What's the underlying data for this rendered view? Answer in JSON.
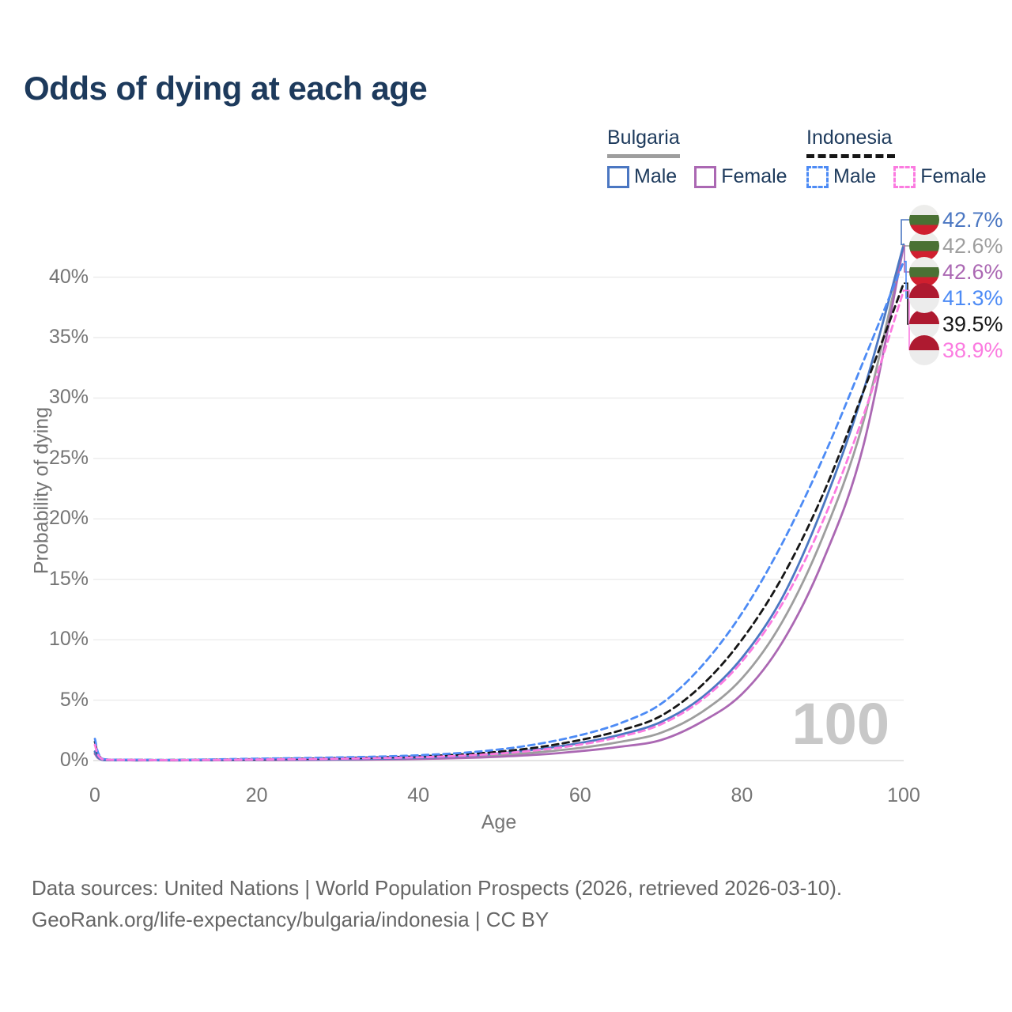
{
  "title": "Odds of dying at each age",
  "legend": {
    "groups": [
      {
        "name": "Bulgaria",
        "style": "solid",
        "underline_series": "bulgaria_total",
        "items": [
          {
            "label": "Male",
            "series": "bulgaria_male"
          },
          {
            "label": "Female",
            "series": "bulgaria_female"
          }
        ]
      },
      {
        "name": "Indonesia",
        "style": "dashed",
        "underline_series": "indonesia_total",
        "items": [
          {
            "label": "Male",
            "series": "indonesia_male"
          },
          {
            "label": "Female",
            "series": "indonesia_female"
          }
        ]
      }
    ]
  },
  "watermark": "100",
  "footer": {
    "line1": "Data sources: United Nations | World Population Prospects (2026, retrieved 2026-03-10).",
    "line2": "GeoRank.org/life-expectancy/bulgaria/indonesia | CC BY"
  },
  "chart_data": {
    "type": "line",
    "title": "Odds of dying at each age",
    "xlabel": "Age",
    "ylabel": "Probability of dying",
    "xlim": [
      0,
      100
    ],
    "ylim_pct": [
      0,
      43
    ],
    "grid": "horizontal",
    "yticks_pct": [
      0,
      5,
      10,
      15,
      20,
      25,
      30,
      35,
      40
    ],
    "ytick_labels": [
      "0%",
      "5%",
      "10%",
      "15%",
      "20%",
      "25%",
      "30%",
      "35%",
      "40%"
    ],
    "xticks": [
      0,
      20,
      40,
      60,
      80,
      100
    ],
    "ages": [
      0,
      1,
      5,
      10,
      15,
      20,
      25,
      30,
      35,
      40,
      45,
      50,
      55,
      60,
      65,
      70,
      75,
      80,
      85,
      90,
      95,
      100
    ],
    "series": [
      {
        "key": "bulgaria_total",
        "name": "Bulgaria (both sexes)",
        "country": "Bulgaria",
        "flag": "bulgaria",
        "dash": false,
        "color": "#9e9e9e",
        "end_label": "42.6%",
        "label_slot": 1,
        "values_pct": [
          0.65,
          0.05,
          0.02,
          0.02,
          0.04,
          0.06,
          0.08,
          0.1,
          0.13,
          0.18,
          0.28,
          0.45,
          0.7,
          1.05,
          1.55,
          2.3,
          4.0,
          6.8,
          11.5,
          18.5,
          28.0,
          42.6
        ]
      },
      {
        "key": "bulgaria_female",
        "name": "Bulgaria Female",
        "country": "Bulgaria",
        "flag": "bulgaria",
        "dash": false,
        "color": "#ab68b3",
        "end_label": "42.6%",
        "label_slot": 2,
        "values_pct": [
          0.55,
          0.05,
          0.02,
          0.02,
          0.03,
          0.04,
          0.05,
          0.07,
          0.09,
          0.13,
          0.2,
          0.32,
          0.5,
          0.78,
          1.15,
          1.7,
          3.2,
          5.5,
          9.8,
          16.5,
          26.0,
          42.6
        ]
      },
      {
        "key": "bulgaria_male",
        "name": "Bulgaria Male",
        "country": "Bulgaria",
        "flag": "bulgaria",
        "dash": false,
        "color": "#4b77c2",
        "end_label": "42.7%",
        "label_slot": 0,
        "values_pct": [
          0.75,
          0.06,
          0.03,
          0.03,
          0.05,
          0.08,
          0.1,
          0.12,
          0.16,
          0.23,
          0.36,
          0.6,
          0.95,
          1.45,
          2.15,
          3.2,
          5.2,
          8.5,
          13.5,
          21.0,
          30.5,
          42.7
        ]
      },
      {
        "key": "indonesia_total",
        "name": "Indonesia (both sexes)",
        "country": "Indonesia",
        "flag": "indonesia",
        "dash": true,
        "color": "#161616",
        "end_label": "39.5%",
        "label_slot": 4,
        "values_pct": [
          1.55,
          0.11,
          0.06,
          0.05,
          0.08,
          0.12,
          0.16,
          0.2,
          0.26,
          0.35,
          0.5,
          0.74,
          1.12,
          1.7,
          2.5,
          3.7,
          6.2,
          10.0,
          15.2,
          22.0,
          30.5,
          39.5
        ]
      },
      {
        "key": "indonesia_male",
        "name": "Indonesia Male",
        "country": "Indonesia",
        "flag": "indonesia",
        "dash": true,
        "color": "#4d8bf5",
        "end_label": "41.3%",
        "label_slot": 3,
        "values_pct": [
          1.8,
          0.13,
          0.07,
          0.06,
          0.1,
          0.16,
          0.2,
          0.26,
          0.33,
          0.44,
          0.62,
          0.92,
          1.4,
          2.1,
          3.1,
          4.7,
          7.8,
          12.2,
          18.0,
          25.0,
          33.0,
          41.3
        ]
      },
      {
        "key": "indonesia_female",
        "name": "Indonesia Female",
        "country": "Indonesia",
        "flag": "indonesia",
        "dash": true,
        "color": "#fb7be0",
        "end_label": "38.9%",
        "label_slot": 5,
        "values_pct": [
          1.3,
          0.1,
          0.05,
          0.04,
          0.06,
          0.09,
          0.12,
          0.15,
          0.2,
          0.27,
          0.39,
          0.58,
          0.88,
          1.32,
          1.98,
          3.0,
          5.0,
          8.2,
          13.0,
          19.8,
          28.5,
          38.9
        ]
      }
    ],
    "legend_position": "top-right",
    "annotation_watermark": "100"
  }
}
